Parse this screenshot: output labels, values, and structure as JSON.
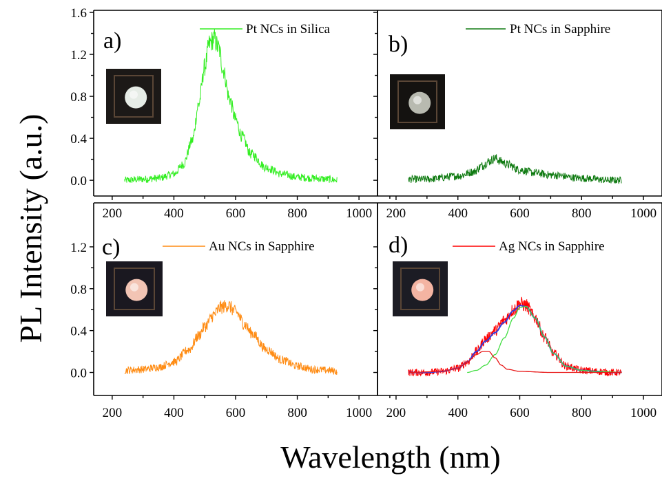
{
  "figure": {
    "xlabel": "Wavelength (nm)",
    "ylabel": "PL Intensity (a.u.)"
  },
  "chart_data": [
    {
      "type": "line",
      "panel_label": "a)",
      "xlim": [
        140,
        1060
      ],
      "ylim": [
        -0.15,
        1.62
      ],
      "x_ticks": [
        200,
        400,
        600,
        800,
        1000
      ],
      "y_ticks": [
        0.0,
        0.4,
        0.8,
        1.2,
        1.6
      ],
      "y_tick_labels": [
        "0.0",
        "0.4",
        "0.8",
        "1.2",
        "1.6"
      ],
      "show_x_tick_labels": true,
      "show_y_tick_labels": true,
      "legend_position": "top-right",
      "inset_photo": {
        "spot_color": "#e6ece6",
        "bg_color": "#1c1917"
      },
      "series": [
        {
          "name": "Pt NCs in Silica",
          "color": "#33ee22",
          "style": "noisy",
          "x": [
            240,
            300,
            350,
            400,
            430,
            460,
            480,
            500,
            515,
            530,
            545,
            560,
            580,
            600,
            620,
            650,
            700,
            750,
            800,
            850,
            900,
            930
          ],
          "y": [
            0.0,
            0.01,
            0.02,
            0.06,
            0.15,
            0.38,
            0.72,
            1.08,
            1.3,
            1.35,
            1.26,
            1.05,
            0.78,
            0.58,
            0.42,
            0.25,
            0.12,
            0.06,
            0.03,
            0.02,
            0.01,
            0.0
          ]
        }
      ]
    },
    {
      "type": "line",
      "panel_label": "b)",
      "xlim": [
        140,
        1060
      ],
      "ylim": [
        -0.15,
        1.62
      ],
      "x_ticks": [
        200,
        400,
        600,
        800,
        1000
      ],
      "y_ticks": [
        0.0,
        0.4,
        0.8,
        1.2,
        1.6
      ],
      "y_tick_labels": [
        "0.0",
        "0.4",
        "0.8",
        "1.2",
        "1.6"
      ],
      "show_x_tick_labels": true,
      "show_y_tick_labels": false,
      "legend_position": "top-right",
      "inset_photo": {
        "spot_color": "#b8bab0",
        "bg_color": "#141210"
      },
      "series": [
        {
          "name": "Pt NCs in Sapphire",
          "color": "#0e7a10",
          "style": "noisy",
          "x": [
            240,
            300,
            400,
            450,
            480,
            500,
            520,
            540,
            560,
            600,
            650,
            700,
            800,
            900,
            930
          ],
          "y": [
            0.01,
            0.01,
            0.04,
            0.08,
            0.14,
            0.18,
            0.21,
            0.18,
            0.15,
            0.1,
            0.07,
            0.05,
            0.02,
            0.0,
            0.0
          ]
        }
      ]
    },
    {
      "type": "line",
      "panel_label": "c)",
      "xlim": [
        140,
        1060
      ],
      "ylim": [
        -0.22,
        1.62
      ],
      "x_ticks": [
        200,
        400,
        600,
        800,
        1000
      ],
      "y_ticks": [
        0.0,
        0.4,
        0.8,
        1.2
      ],
      "y_tick_labels": [
        "0.0",
        "0.4",
        "0.8",
        "1.2"
      ],
      "show_x_tick_labels": true,
      "show_y_tick_labels": true,
      "legend_position": "top-right",
      "inset_photo": {
        "spot_color": "#f2c4b4",
        "bg_color": "#1a1820"
      },
      "series": [
        {
          "name": "Au NCs in Sapphire",
          "color": "#ff8c14",
          "style": "noisy",
          "x": [
            240,
            300,
            350,
            400,
            450,
            480,
            500,
            530,
            550,
            575,
            600,
            630,
            650,
            700,
            750,
            800,
            850,
            900,
            930
          ],
          "y": [
            0.02,
            0.03,
            0.05,
            0.1,
            0.22,
            0.35,
            0.44,
            0.55,
            0.62,
            0.64,
            0.58,
            0.46,
            0.38,
            0.22,
            0.12,
            0.06,
            0.03,
            0.02,
            0.01
          ]
        }
      ]
    },
    {
      "type": "line",
      "panel_label": "d)",
      "xlim": [
        140,
        1060
      ],
      "ylim": [
        -0.22,
        1.62
      ],
      "x_ticks": [
        200,
        400,
        600,
        800,
        1000
      ],
      "y_ticks": [
        0.0,
        0.4,
        0.8,
        1.2
      ],
      "y_tick_labels": [
        "0.0",
        "0.4",
        "0.8",
        "1.2"
      ],
      "show_x_tick_labels": true,
      "show_y_tick_labels": false,
      "legend_position": "top-right",
      "inset_photo": {
        "spot_color": "#f4b4a2",
        "bg_color": "#1c1c24"
      },
      "series": [
        {
          "name": "Ag NCs in Sapphire",
          "color": "#ff0000",
          "style": "noisy",
          "x": [
            240,
            300,
            350,
            400,
            430,
            460,
            490,
            520,
            550,
            580,
            600,
            620,
            650,
            680,
            710,
            750,
            800,
            850,
            900,
            930
          ],
          "y": [
            0.0,
            0.0,
            0.01,
            0.04,
            0.1,
            0.2,
            0.32,
            0.4,
            0.5,
            0.6,
            0.66,
            0.64,
            0.52,
            0.34,
            0.18,
            0.06,
            0.02,
            0.01,
            0.0,
            0.0
          ]
        },
        {
          "color": "#3a3ad8",
          "style": "smooth",
          "x": [
            240,
            300,
            350,
            400,
            430,
            460,
            490,
            520,
            550,
            580,
            600,
            620,
            650,
            680,
            710,
            750,
            800,
            850,
            900,
            930
          ],
          "y": [
            0.0,
            0.0,
            0.01,
            0.04,
            0.1,
            0.2,
            0.3,
            0.38,
            0.48,
            0.59,
            0.64,
            0.63,
            0.52,
            0.34,
            0.18,
            0.06,
            0.02,
            0.01,
            0.0,
            0.0
          ]
        },
        {
          "color": "#40dd40",
          "style": "smooth",
          "x": [
            430,
            460,
            490,
            520,
            550,
            580,
            600,
            620,
            650,
            680,
            710,
            750,
            800,
            850,
            930
          ],
          "y": [
            0.0,
            0.02,
            0.07,
            0.17,
            0.33,
            0.52,
            0.62,
            0.63,
            0.52,
            0.34,
            0.18,
            0.06,
            0.02,
            0.01,
            0.0
          ]
        },
        {
          "color": "#e81818",
          "style": "smooth",
          "x": [
            240,
            350,
            400,
            430,
            460,
            480,
            500,
            520,
            540,
            560,
            600,
            700,
            800,
            930
          ],
          "y": [
            0.0,
            0.01,
            0.04,
            0.1,
            0.17,
            0.2,
            0.2,
            0.14,
            0.07,
            0.03,
            0.01,
            0.0,
            0.0,
            0.0
          ]
        }
      ]
    }
  ]
}
